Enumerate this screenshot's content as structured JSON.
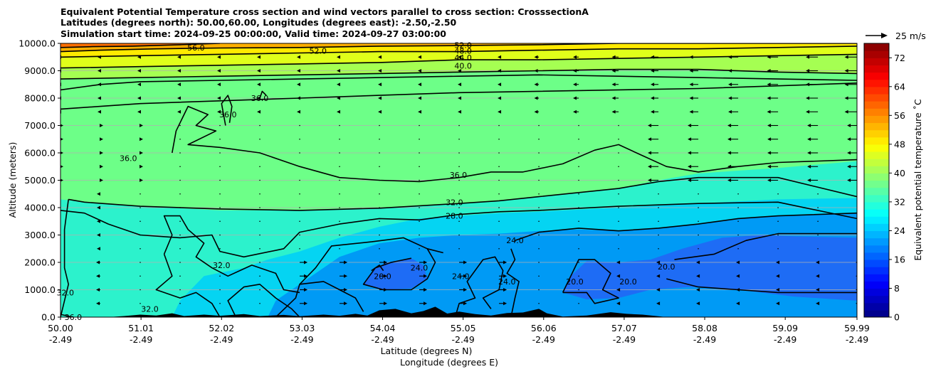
{
  "chart_data": {
    "type": "contour",
    "title_lines": [
      "Equivalent Potential Temperature cross section and wind vectors parallel to cross section: CrosssectionA",
      "Latitudes (degrees north): 50.00,60.00, Longitudes (degrees east): -2.50,-2.50",
      "Simulation start time: 2024-09-25 00:00:00, Valid time: 2024-09-27 03:00:00"
    ],
    "ylabel": "Altitude (meters)",
    "xlabel": "Latitude (degrees N)",
    "xlabel2": "Longitude (degrees E)",
    "ylim": [
      0,
      10000
    ],
    "xlim": [
      50.0,
      59.99
    ],
    "yticks": [
      {
        "value": 0,
        "label": "0.0"
      },
      {
        "value": 1000,
        "label": "1000.0"
      },
      {
        "value": 2000,
        "label": "2000.0"
      },
      {
        "value": 3000,
        "label": "3000.0"
      },
      {
        "value": 4000,
        "label": "4000.0"
      },
      {
        "value": 5000,
        "label": "5000.0"
      },
      {
        "value": 6000,
        "label": "6000.0"
      },
      {
        "value": 7000,
        "label": "7000.0"
      },
      {
        "value": 8000,
        "label": "8000.0"
      },
      {
        "value": 9000,
        "label": "9000.0"
      },
      {
        "value": 10000,
        "label": "10000.0"
      }
    ],
    "xticks": [
      {
        "value": 50.0,
        "lat": "50.00",
        "lon": "-2.49"
      },
      {
        "value": 51.01,
        "lat": "51.01",
        "lon": "-2.49"
      },
      {
        "value": 52.02,
        "lat": "52.02",
        "lon": "-2.49"
      },
      {
        "value": 53.03,
        "lat": "53.03",
        "lon": "-2.49"
      },
      {
        "value": 54.04,
        "lat": "54.04",
        "lon": "-2.49"
      },
      {
        "value": 55.05,
        "lat": "55.05",
        "lon": "-2.49"
      },
      {
        "value": 56.06,
        "lat": "56.06",
        "lon": "-2.49"
      },
      {
        "value": 57.07,
        "lat": "57.07",
        "lon": "-2.49"
      },
      {
        "value": 58.08,
        "lat": "58.08",
        "lon": "-2.49"
      },
      {
        "value": 59.09,
        "lat": "59.09",
        "lon": "-2.49"
      },
      {
        "value": 59.99,
        "lat": "59.99",
        "lon": "-2.49"
      }
    ],
    "grid": "horizontal",
    "colorbar": {
      "label": "Equivalent potential temperature ˚C",
      "min": 0,
      "max": 76,
      "tick_values": [
        0,
        8,
        16,
        24,
        32,
        40,
        48,
        56,
        64,
        72
      ],
      "tick_labels": [
        "0",
        "8",
        "16",
        "24",
        "32",
        "40",
        "48",
        "56",
        "64",
        "72"
      ],
      "colormap": "jet"
    },
    "quiver_key": {
      "label": "25 m/s",
      "speed": 25
    },
    "colors": {
      "theta_20": "#1e6cf5",
      "theta_24": "#009af5",
      "theta_28": "#05d4f2",
      "theta_32": "#2cf2cc",
      "theta_36": "#6dff88",
      "theta_40": "#a5ff52",
      "theta_44": "#e0ff1a",
      "theta_48": "#ffea00",
      "theta_52": "#ffb000",
      "theta_56": "#ff7000",
      "terrain": "#000000",
      "contour": "#000000",
      "grid": "#b0b0b0"
    },
    "contours": [
      {
        "level": 20,
        "label": "20.0"
      },
      {
        "level": 24,
        "label": "24.0"
      },
      {
        "level": 28,
        "label": "28.0"
      },
      {
        "level": 32,
        "label": "32.0"
      },
      {
        "level": 36,
        "label": "36.0"
      },
      {
        "level": 40,
        "label": "40.0"
      },
      {
        "level": 44,
        "label": "44.0"
      },
      {
        "level": 48,
        "label": "48.0"
      },
      {
        "level": 52,
        "label": "52.0"
      },
      {
        "level": 56,
        "label": "56.0"
      }
    ],
    "contour_labels": [
      {
        "text": "56.0",
        "lat": 51.7,
        "alt": 9850
      },
      {
        "text": "52.0",
        "lat": 53.23,
        "alt": 9730
      },
      {
        "text": "52.0",
        "lat": 55.05,
        "alt": 9940
      },
      {
        "text": "48.0",
        "lat": 55.05,
        "alt": 9730
      },
      {
        "text": "44.0",
        "lat": 55.05,
        "alt": 9480
      },
      {
        "text": "40.0",
        "lat": 55.05,
        "alt": 9180
      },
      {
        "text": "36.0",
        "lat": 52.5,
        "alt": 8000
      },
      {
        "text": "36.0",
        "lat": 52.1,
        "alt": 7400
      },
      {
        "text": "36.0",
        "lat": 50.85,
        "alt": 5800
      },
      {
        "text": "36.0",
        "lat": 54.99,
        "alt": 5200
      },
      {
        "text": "32.0",
        "lat": 54.94,
        "alt": 4200
      },
      {
        "text": "28.0",
        "lat": 54.94,
        "alt": 3700
      },
      {
        "text": "32.0",
        "lat": 50.06,
        "alt": 900
      },
      {
        "text": "36.0",
        "lat": 50.16,
        "alt": 0
      },
      {
        "text": "32.0",
        "lat": 51.12,
        "alt": 300
      },
      {
        "text": "32.0",
        "lat": 52.02,
        "alt": 1900
      },
      {
        "text": "20.0",
        "lat": 54.04,
        "alt": 1500
      },
      {
        "text": "24.0",
        "lat": 54.5,
        "alt": 1800
      },
      {
        "text": "24.0",
        "lat": 55.02,
        "alt": 1500
      },
      {
        "text": "24.0",
        "lat": 55.6,
        "alt": 1300
      },
      {
        "text": "24.0",
        "lat": 55.7,
        "alt": 2800
      },
      {
        "text": "20.0",
        "lat": 56.45,
        "alt": 1300
      },
      {
        "text": "20.0",
        "lat": 57.12,
        "alt": 1300
      },
      {
        "text": "20.0",
        "lat": 57.6,
        "alt": 1850
      }
    ],
    "wind_vectors_sample": [
      {
        "lat": 53.03,
        "alt": 1000,
        "u": 5
      },
      {
        "lat": 54.04,
        "alt": 1000,
        "u": 4
      },
      {
        "lat": 55.05,
        "alt": 1000,
        "u": 3
      },
      {
        "lat": 56.06,
        "alt": 1500,
        "u": -3
      },
      {
        "lat": 57.07,
        "alt": 7000,
        "u": -4
      },
      {
        "lat": 58.08,
        "alt": 8000,
        "u": -5
      },
      {
        "lat": 59.09,
        "alt": 9000,
        "u": -4
      }
    ]
  }
}
